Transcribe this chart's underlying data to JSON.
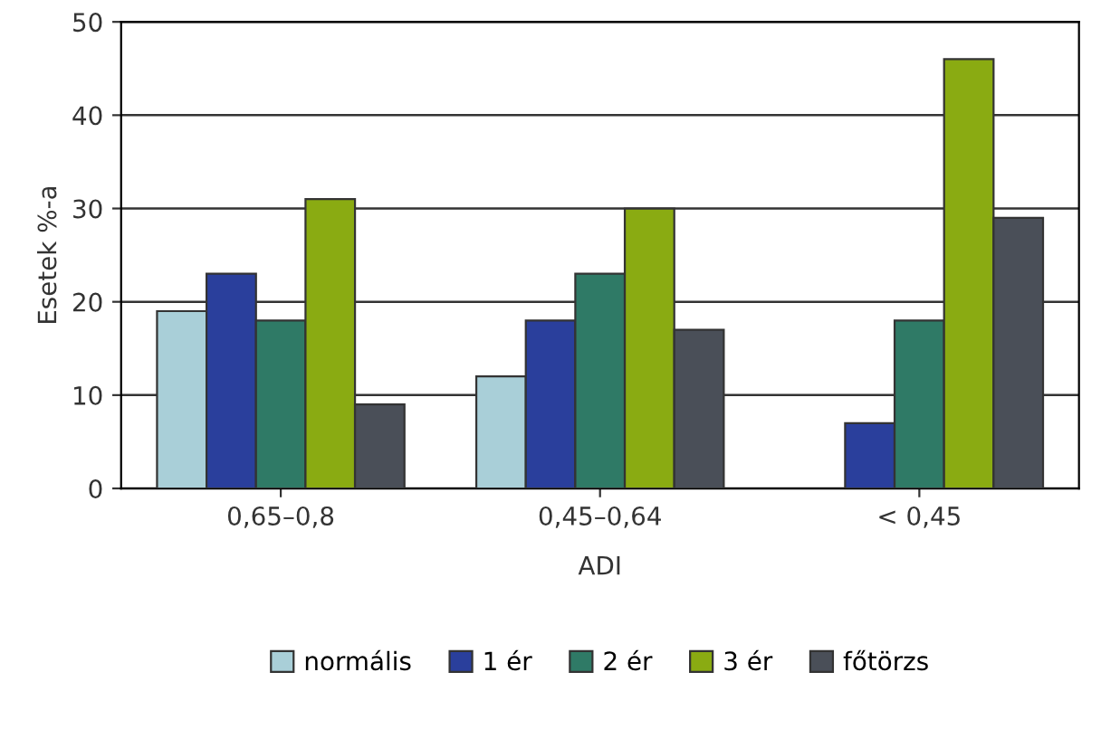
{
  "chart_data": {
    "type": "bar",
    "xlabel": "ADI",
    "ylabel": "Esetek %-a",
    "categories": [
      "0,65–0,8",
      "0,45–0,64",
      "< 0,45"
    ],
    "series": [
      {
        "name": "normális",
        "color": "#a9cfd8",
        "values": [
          19,
          12,
          null
        ]
      },
      {
        "name": "1 ér",
        "color": "#2a3f9c",
        "values": [
          23,
          18,
          7
        ]
      },
      {
        "name": "2 ér",
        "color": "#2f7a66",
        "values": [
          18,
          23,
          18
        ]
      },
      {
        "name": "3 ér",
        "color": "#8aab12",
        "values": [
          31,
          30,
          46
        ]
      },
      {
        "name": "főtörzs",
        "color": "#4a4f58",
        "values": [
          9,
          17,
          29
        ]
      }
    ],
    "ylim": [
      0,
      50
    ],
    "yticks": [
      0,
      10,
      20,
      30,
      40,
      50
    ],
    "grid": "y",
    "legend": "bottom"
  }
}
